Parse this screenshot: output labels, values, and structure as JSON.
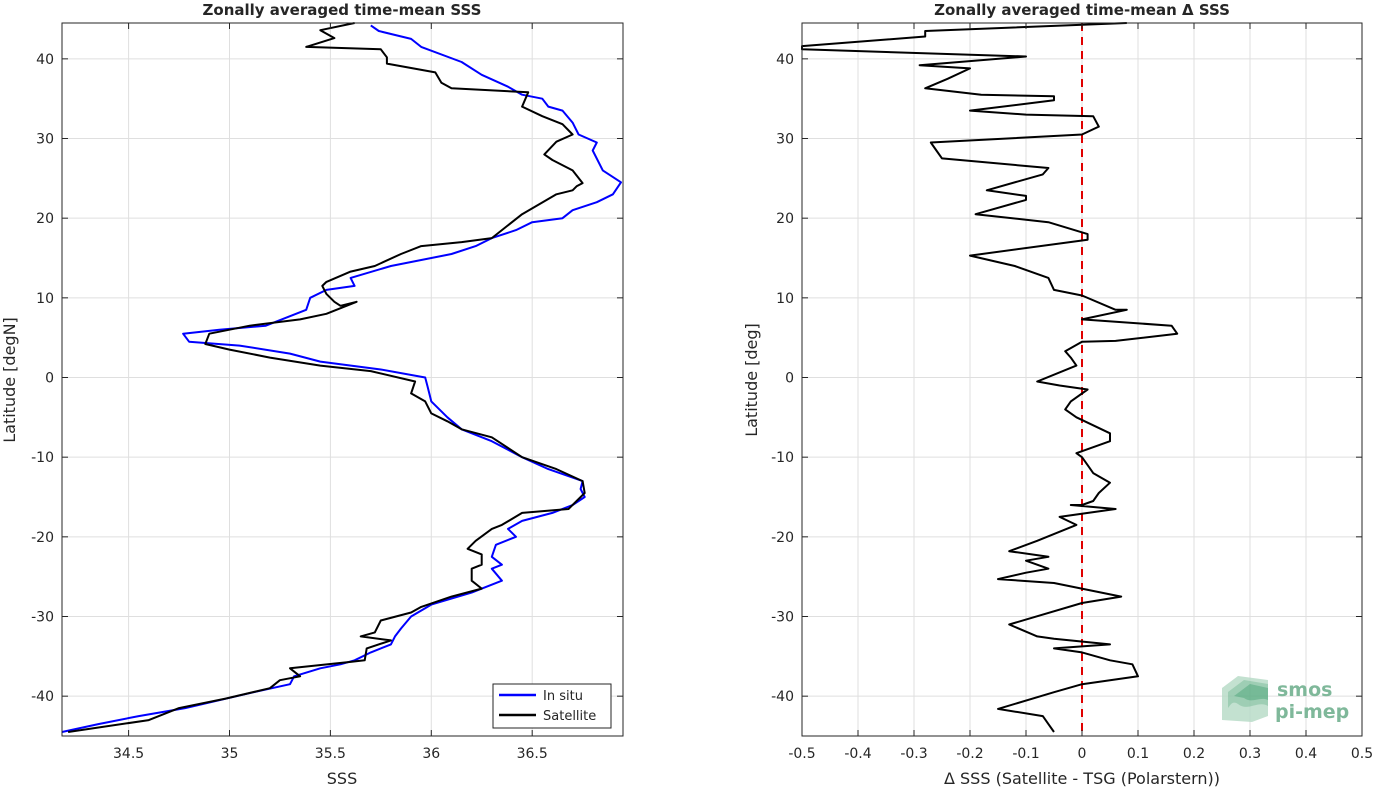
{
  "chart_data": [
    {
      "type": "line",
      "title": "Zonally averaged time-mean SSS",
      "xlabel": "SSS",
      "ylabel": "Latitude [degN]",
      "xlim": [
        34.17,
        36.95
      ],
      "ylim": [
        -45,
        44.5
      ],
      "xticks": [
        34.5,
        35,
        35.5,
        36,
        36.5
      ],
      "xtick_labels": [
        "34.5",
        "35",
        "35.5",
        "36",
        "36.5"
      ],
      "yticks": [
        -40,
        -30,
        -20,
        -10,
        0,
        10,
        20,
        30,
        40
      ],
      "ytick_labels": [
        "-40",
        "-30",
        "-20",
        "-10",
        "0",
        "10",
        "20",
        "30",
        "40"
      ],
      "grid": true,
      "legend_position": "bottom-right",
      "series": [
        {
          "name": "In situ",
          "color": "#0000ff",
          "points": [
            [
              35.7,
              44.2
            ],
            [
              35.74,
              43.5
            ],
            [
              35.9,
              42.5
            ],
            [
              35.95,
              41.5
            ],
            [
              36.15,
              39.6
            ],
            [
              36.25,
              38
            ],
            [
              36.38,
              36.5
            ],
            [
              36.45,
              35.5
            ],
            [
              36.55,
              35
            ],
            [
              36.58,
              34
            ],
            [
              36.65,
              33.5
            ],
            [
              36.7,
              32
            ],
            [
              36.73,
              30.5
            ],
            [
              36.82,
              29.5
            ],
            [
              36.8,
              28.5
            ],
            [
              36.85,
              26
            ],
            [
              36.94,
              24.5
            ],
            [
              36.9,
              23
            ],
            [
              36.82,
              22
            ],
            [
              36.7,
              21
            ],
            [
              36.65,
              20
            ],
            [
              36.5,
              19.5
            ],
            [
              36.42,
              18.5
            ],
            [
              36.3,
              17.5
            ],
            [
              36.22,
              16.5
            ],
            [
              36.1,
              15.5
            ],
            [
              35.8,
              14
            ],
            [
              35.6,
              12.5
            ],
            [
              35.62,
              11.5
            ],
            [
              35.48,
              11
            ],
            [
              35.4,
              10
            ],
            [
              35.38,
              8.5
            ],
            [
              35.18,
              6.5
            ],
            [
              34.95,
              6
            ],
            [
              34.77,
              5.5
            ],
            [
              34.8,
              4.5
            ],
            [
              35.05,
              4
            ],
            [
              35.3,
              3
            ],
            [
              35.45,
              2
            ],
            [
              35.75,
              1
            ],
            [
              35.97,
              0
            ],
            [
              35.98,
              -1
            ],
            [
              36,
              -3
            ],
            [
              36.08,
              -5
            ],
            [
              36.15,
              -6.5
            ],
            [
              36.3,
              -8
            ],
            [
              36.45,
              -10
            ],
            [
              36.58,
              -11.5
            ],
            [
              36.75,
              -13
            ],
            [
              36.74,
              -14
            ],
            [
              36.76,
              -15
            ],
            [
              36.7,
              -16
            ],
            [
              36.6,
              -17
            ],
            [
              36.45,
              -18
            ],
            [
              36.38,
              -19
            ],
            [
              36.42,
              -20
            ],
            [
              36.32,
              -21
            ],
            [
              36.3,
              -22.5
            ],
            [
              36.35,
              -23.5
            ],
            [
              36.3,
              -24
            ],
            [
              36.35,
              -25.5
            ],
            [
              36.2,
              -27
            ],
            [
              36,
              -28.5
            ],
            [
              35.9,
              -30
            ],
            [
              35.85,
              -31.5
            ],
            [
              35.82,
              -32.5
            ],
            [
              35.8,
              -33.5
            ],
            [
              35.7,
              -34.5
            ],
            [
              35.62,
              -35.5
            ],
            [
              35.55,
              -36
            ],
            [
              35.45,
              -36.5
            ],
            [
              35.32,
              -37.5
            ],
            [
              35.3,
              -38.5
            ],
            [
              35.12,
              -39.5
            ],
            [
              34.95,
              -40.5
            ],
            [
              34.78,
              -41.5
            ],
            [
              34.55,
              -42.5
            ],
            [
              34.35,
              -43.5
            ],
            [
              34.17,
              -44.5
            ]
          ]
        },
        {
          "name": "Satellite",
          "color": "#000000",
          "points": [
            [
              35.62,
              44.5
            ],
            [
              35.45,
              43.6
            ],
            [
              35.52,
              42.6
            ],
            [
              35.38,
              41.5
            ],
            [
              35.75,
              41.2
            ],
            [
              35.78,
              40.2
            ],
            [
              35.78,
              39.4
            ],
            [
              36.02,
              38.3
            ],
            [
              36.05,
              37
            ],
            [
              36.1,
              36.3
            ],
            [
              36.48,
              35.8
            ],
            [
              36.45,
              34
            ],
            [
              36.55,
              32.8
            ],
            [
              36.65,
              31.8
            ],
            [
              36.7,
              30.5
            ],
            [
              36.62,
              29.6
            ],
            [
              36.56,
              28
            ],
            [
              36.6,
              27.3
            ],
            [
              36.7,
              26
            ],
            [
              36.75,
              24.4
            ],
            [
              36.72,
              24
            ],
            [
              36.7,
              23.5
            ],
            [
              36.62,
              23
            ],
            [
              36.45,
              20.5
            ],
            [
              36.3,
              17.5
            ],
            [
              36.15,
              17
            ],
            [
              35.95,
              16.5
            ],
            [
              35.85,
              15.5
            ],
            [
              35.72,
              14
            ],
            [
              35.6,
              13.3
            ],
            [
              35.48,
              12
            ],
            [
              35.46,
              11.5
            ],
            [
              35.48,
              10.5
            ],
            [
              35.52,
              9.5
            ],
            [
              35.55,
              9
            ],
            [
              35.63,
              9.5
            ],
            [
              35.48,
              8
            ],
            [
              35.35,
              7.3
            ],
            [
              35.1,
              6.5
            ],
            [
              34.9,
              5.5
            ],
            [
              34.88,
              4.2
            ],
            [
              35,
              3.5
            ],
            [
              35.2,
              2.5
            ],
            [
              35.45,
              1.5
            ],
            [
              35.7,
              0.8
            ],
            [
              35.92,
              -0.5
            ],
            [
              35.9,
              -2
            ],
            [
              35.97,
              -3
            ],
            [
              36,
              -4.5
            ],
            [
              36.08,
              -5.5
            ],
            [
              36.15,
              -6.5
            ],
            [
              36.3,
              -7.5
            ],
            [
              36.45,
              -10
            ],
            [
              36.62,
              -11.5
            ],
            [
              36.75,
              -13
            ],
            [
              36.76,
              -14.5
            ],
            [
              36.68,
              -16.5
            ],
            [
              36.45,
              -17
            ],
            [
              36.35,
              -18.5
            ],
            [
              36.3,
              -19
            ],
            [
              36.22,
              -20.5
            ],
            [
              36.18,
              -21.5
            ],
            [
              36.25,
              -22.2
            ],
            [
              36.25,
              -23.5
            ],
            [
              36.2,
              -24
            ],
            [
              36.2,
              -25.5
            ],
            [
              36.25,
              -26.5
            ],
            [
              36.1,
              -27.5
            ],
            [
              35.95,
              -28.8
            ],
            [
              35.9,
              -29.5
            ],
            [
              35.75,
              -30.5
            ],
            [
              35.72,
              -32
            ],
            [
              35.65,
              -32.5
            ],
            [
              35.8,
              -33
            ],
            [
              35.68,
              -34
            ],
            [
              35.67,
              -35.5
            ],
            [
              35.6,
              -35.7
            ],
            [
              35.3,
              -36.5
            ],
            [
              35.35,
              -37.5
            ],
            [
              35.25,
              -38
            ],
            [
              35.2,
              -39
            ],
            [
              34.98,
              -40.3
            ],
            [
              34.75,
              -41.5
            ],
            [
              34.6,
              -43
            ],
            [
              34.2,
              -44.5
            ]
          ]
        }
      ]
    },
    {
      "type": "line",
      "title": "Zonally averaged time-mean Δ SSS",
      "xlabel": "Δ SSS (Satellite - TSG (Polarstern))",
      "ylabel": "Latitude [deg]",
      "xlim": [
        -0.5,
        0.5
      ],
      "ylim": [
        -45,
        44.5
      ],
      "xticks": [
        -0.5,
        -0.4,
        -0.3,
        -0.2,
        -0.1,
        0,
        0.1,
        0.2,
        0.3,
        0.4,
        0.5
      ],
      "xtick_labels": [
        "-0.5",
        "-0.4",
        "-0.3",
        "-0.2",
        "-0.1",
        "0",
        "0.1",
        "0.2",
        "0.3",
        "0.4",
        "0.5"
      ],
      "yticks": [
        -40,
        -30,
        -20,
        -10,
        0,
        10,
        20,
        30,
        40
      ],
      "ytick_labels": [
        "-40",
        "-30",
        "-20",
        "-10",
        "0",
        "10",
        "20",
        "30",
        "40"
      ],
      "grid": true,
      "reference_line": {
        "x": 0,
        "color": "#e00000",
        "style": "dashed"
      },
      "series": [
        {
          "color": "#000000",
          "points": [
            [
              0.08,
              44.5
            ],
            [
              -0.28,
              43.5
            ],
            [
              -0.28,
              42.8
            ],
            [
              -0.5,
              41.6
            ],
            [
              -0.5,
              41.2
            ],
            [
              -0.1,
              40.3
            ],
            [
              -0.29,
              39.2
            ],
            [
              -0.2,
              38.8
            ],
            [
              -0.24,
              37.5
            ],
            [
              -0.28,
              36.3
            ],
            [
              -0.18,
              35.5
            ],
            [
              -0.05,
              35.3
            ],
            [
              -0.05,
              34.8
            ],
            [
              -0.2,
              33.5
            ],
            [
              -0.1,
              33
            ],
            [
              0.02,
              32.8
            ],
            [
              0.03,
              31.5
            ],
            [
              0,
              30.5
            ],
            [
              -0.27,
              29.5
            ],
            [
              -0.26,
              28.5
            ],
            [
              -0.25,
              27.5
            ],
            [
              -0.06,
              26.3
            ],
            [
              -0.07,
              25.5
            ],
            [
              -0.17,
              23.5
            ],
            [
              -0.1,
              22.8
            ],
            [
              -0.1,
              22.3
            ],
            [
              -0.19,
              20.5
            ],
            [
              -0.06,
              19.5
            ],
            [
              0.01,
              18
            ],
            [
              0.01,
              17.3
            ],
            [
              -0.2,
              15.3
            ],
            [
              -0.12,
              14
            ],
            [
              -0.06,
              12.5
            ],
            [
              -0.05,
              11
            ],
            [
              0,
              10.3
            ],
            [
              0.06,
              8.5
            ],
            [
              0.08,
              8.5
            ],
            [
              0,
              7.3
            ],
            [
              0.16,
              6.5
            ],
            [
              0.17,
              5.5
            ],
            [
              0.06,
              4.6
            ],
            [
              0,
              4.5
            ],
            [
              -0.03,
              3.3
            ],
            [
              -0.02,
              2.5
            ],
            [
              -0.01,
              1.5
            ],
            [
              -0.08,
              -0.5
            ],
            [
              -0.04,
              -1
            ],
            [
              0.01,
              -1.5
            ],
            [
              -0.02,
              -3
            ],
            [
              -0.03,
              -4
            ],
            [
              -0.01,
              -5
            ],
            [
              0.05,
              -7
            ],
            [
              0.05,
              -8
            ],
            [
              -0.01,
              -9.5
            ],
            [
              0,
              -10
            ],
            [
              0.01,
              -11
            ],
            [
              0.02,
              -12
            ],
            [
              0.05,
              -13.2
            ],
            [
              0.03,
              -14.5
            ],
            [
              0.02,
              -15.5
            ],
            [
              0,
              -16
            ],
            [
              -0.02,
              -16
            ],
            [
              0.06,
              -16.5
            ],
            [
              -0.04,
              -17.5
            ],
            [
              -0.01,
              -18.5
            ],
            [
              -0.08,
              -20.5
            ],
            [
              -0.13,
              -21.8
            ],
            [
              -0.06,
              -22.5
            ],
            [
              -0.1,
              -23
            ],
            [
              -0.06,
              -24
            ],
            [
              -0.1,
              -24.5
            ],
            [
              -0.15,
              -25.3
            ],
            [
              -0.05,
              -25.8
            ],
            [
              0.07,
              -27.5
            ],
            [
              0,
              -28.3
            ],
            [
              -0.13,
              -31
            ],
            [
              -0.08,
              -32.5
            ],
            [
              -0.05,
              -32.8
            ],
            [
              0.05,
              -33.5
            ],
            [
              -0.05,
              -34
            ],
            [
              0,
              -34.5
            ],
            [
              0.05,
              -35.5
            ],
            [
              0.09,
              -36
            ],
            [
              0.1,
              -37.5
            ],
            [
              0,
              -38.5
            ],
            [
              -0.05,
              -39.5
            ],
            [
              -0.15,
              -41.6
            ],
            [
              -0.07,
              -42.5
            ],
            [
              -0.06,
              -43.5
            ],
            [
              -0.05,
              -44.5
            ]
          ]
        }
      ]
    }
  ],
  "legend": {
    "items": [
      {
        "label": "In situ",
        "color": "#0000ff"
      },
      {
        "label": "Satellite",
        "color": "#000000"
      }
    ]
  },
  "logo": {
    "line1": "smos",
    "line2": "pi-mep"
  }
}
